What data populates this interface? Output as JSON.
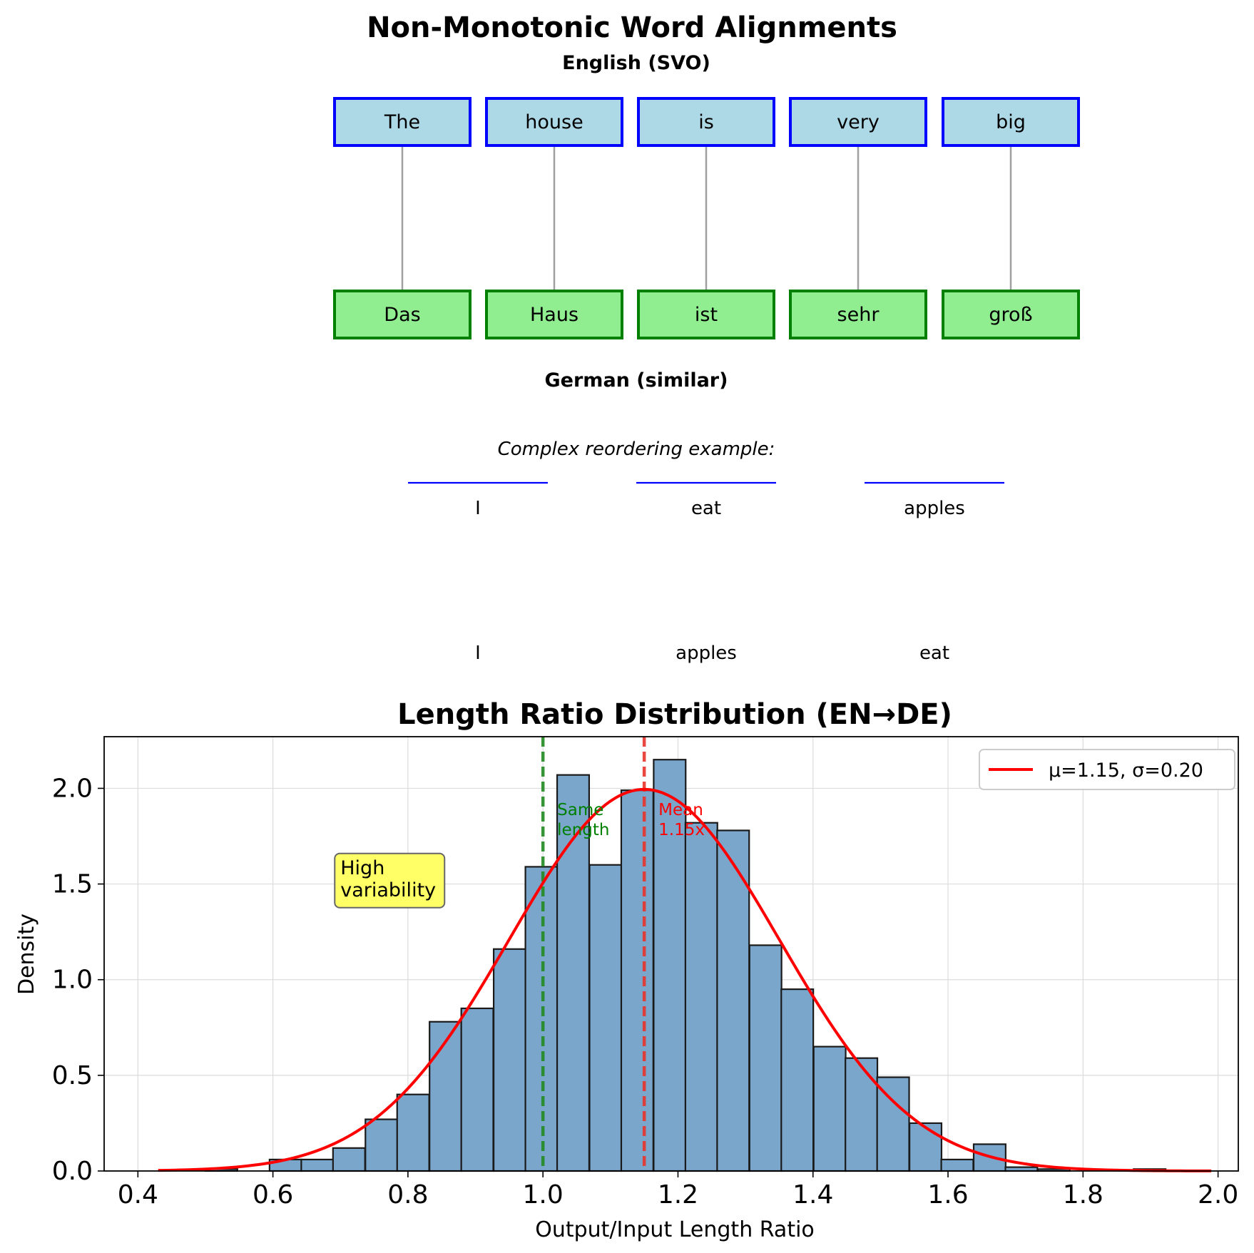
{
  "alignment": {
    "title": "Non-Monotonic Word Alignments",
    "source_label": "English (SVO)",
    "target_label": "German (similar)",
    "source_words": [
      "The",
      "house",
      "is",
      "very",
      "big"
    ],
    "target_words": [
      "Das",
      "Haus",
      "ist",
      "sehr",
      "groß"
    ],
    "colors": {
      "source_fill": "#add8e6",
      "source_border": "#0000ff",
      "target_fill": "#90ee90",
      "target_border": "#008000",
      "link": "#a0a0a0"
    },
    "complex_example": {
      "label": "Complex reordering example:",
      "source_words": [
        "I",
        "eat",
        "apples"
      ],
      "target_words": [
        "I",
        "apples",
        "eat"
      ],
      "line_color": "#0000ff"
    }
  },
  "chart_data": {
    "type": "bar",
    "title": "Length Ratio Distribution (EN→DE)",
    "xlabel": "Output/Input Length Ratio",
    "ylabel": "Density",
    "xlim": [
      0.35,
      2.03
    ],
    "ylim": [
      0,
      2.27
    ],
    "xticks": [
      "0.4",
      "0.6",
      "0.8",
      "1.0",
      "1.2",
      "1.4",
      "1.6",
      "1.8",
      "2.0"
    ],
    "yticks": [
      "0.0",
      "0.5",
      "1.0",
      "1.5",
      "2.0"
    ],
    "grid": true,
    "bin_width": 0.0474,
    "bins": [
      {
        "x0": 0.452,
        "density": 0.0
      },
      {
        "x0": 0.5,
        "density": 0.01
      },
      {
        "x0": 0.547,
        "density": 0.0
      },
      {
        "x0": 0.595,
        "density": 0.06
      },
      {
        "x0": 0.642,
        "density": 0.06
      },
      {
        "x0": 0.689,
        "density": 0.12
      },
      {
        "x0": 0.737,
        "density": 0.27
      },
      {
        "x0": 0.784,
        "density": 0.4
      },
      {
        "x0": 0.832,
        "density": 0.78
      },
      {
        "x0": 0.879,
        "density": 0.85
      },
      {
        "x0": 0.927,
        "density": 1.16
      },
      {
        "x0": 0.974,
        "density": 1.59
      },
      {
        "x0": 1.021,
        "density": 2.07
      },
      {
        "x0": 1.069,
        "density": 1.6
      },
      {
        "x0": 1.116,
        "density": 1.99
      },
      {
        "x0": 1.164,
        "density": 2.15
      },
      {
        "x0": 1.211,
        "density": 1.82
      },
      {
        "x0": 1.258,
        "density": 1.78
      },
      {
        "x0": 1.306,
        "density": 1.18
      },
      {
        "x0": 1.353,
        "density": 0.95
      },
      {
        "x0": 1.401,
        "density": 0.65
      },
      {
        "x0": 1.448,
        "density": 0.59
      },
      {
        "x0": 1.495,
        "density": 0.49
      },
      {
        "x0": 1.543,
        "density": 0.25
      },
      {
        "x0": 1.59,
        "density": 0.06
      },
      {
        "x0": 1.638,
        "density": 0.14
      },
      {
        "x0": 1.685,
        "density": 0.02
      },
      {
        "x0": 1.733,
        "density": 0.01
      },
      {
        "x0": 1.78,
        "density": 0.0
      },
      {
        "x0": 1.827,
        "density": 0.0
      },
      {
        "x0": 1.875,
        "density": 0.01
      },
      {
        "x0": 1.922,
        "density": 0.0
      }
    ],
    "fit": {
      "mu": 1.15,
      "sigma": 0.2,
      "x_range": [
        0.43,
        1.99
      ],
      "legend": "μ=1.15, σ=0.20"
    },
    "legend_position": "upper right",
    "vlines": [
      {
        "x": 1.0,
        "label": "Same\nlength",
        "color": "#228b22",
        "text_color": "#008000"
      },
      {
        "x": 1.15,
        "label": "Mean\n1.15x",
        "color": "#e8342c",
        "text_color": "#ff0000"
      }
    ],
    "annotation": {
      "text": "High\nvariability",
      "x": 0.7,
      "y": 1.38,
      "fill": "#ffff66"
    },
    "colors": {
      "bar_fill": "#7ba6cc",
      "bar_edge": "#1a1a1a",
      "fit": "#ff0000"
    }
  }
}
